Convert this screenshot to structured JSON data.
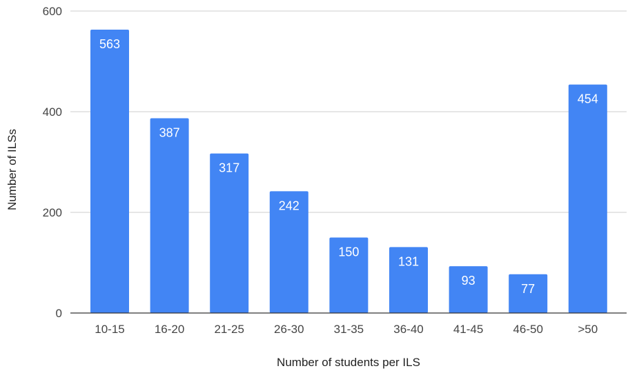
{
  "chart_data": {
    "type": "bar",
    "title": "",
    "xlabel": "Number of students per ILS",
    "ylabel": "Number of ILSs",
    "categories": [
      "10-15",
      "16-20",
      "21-25",
      "26-30",
      "31-35",
      "36-40",
      "41-45",
      "46-50",
      ">50"
    ],
    "values": [
      563,
      387,
      317,
      242,
      150,
      131,
      93,
      77,
      454
    ],
    "value_labels": [
      "563",
      "387",
      "317",
      "242",
      "150",
      "131",
      "93",
      "77",
      "454"
    ],
    "ylim": [
      0,
      600
    ],
    "yticks": [
      0,
      200,
      400,
      600
    ],
    "ytick_labels": [
      "0",
      "200",
      "400",
      "600"
    ],
    "grid": true,
    "legend": "none",
    "bar_color": "#4285f4"
  }
}
